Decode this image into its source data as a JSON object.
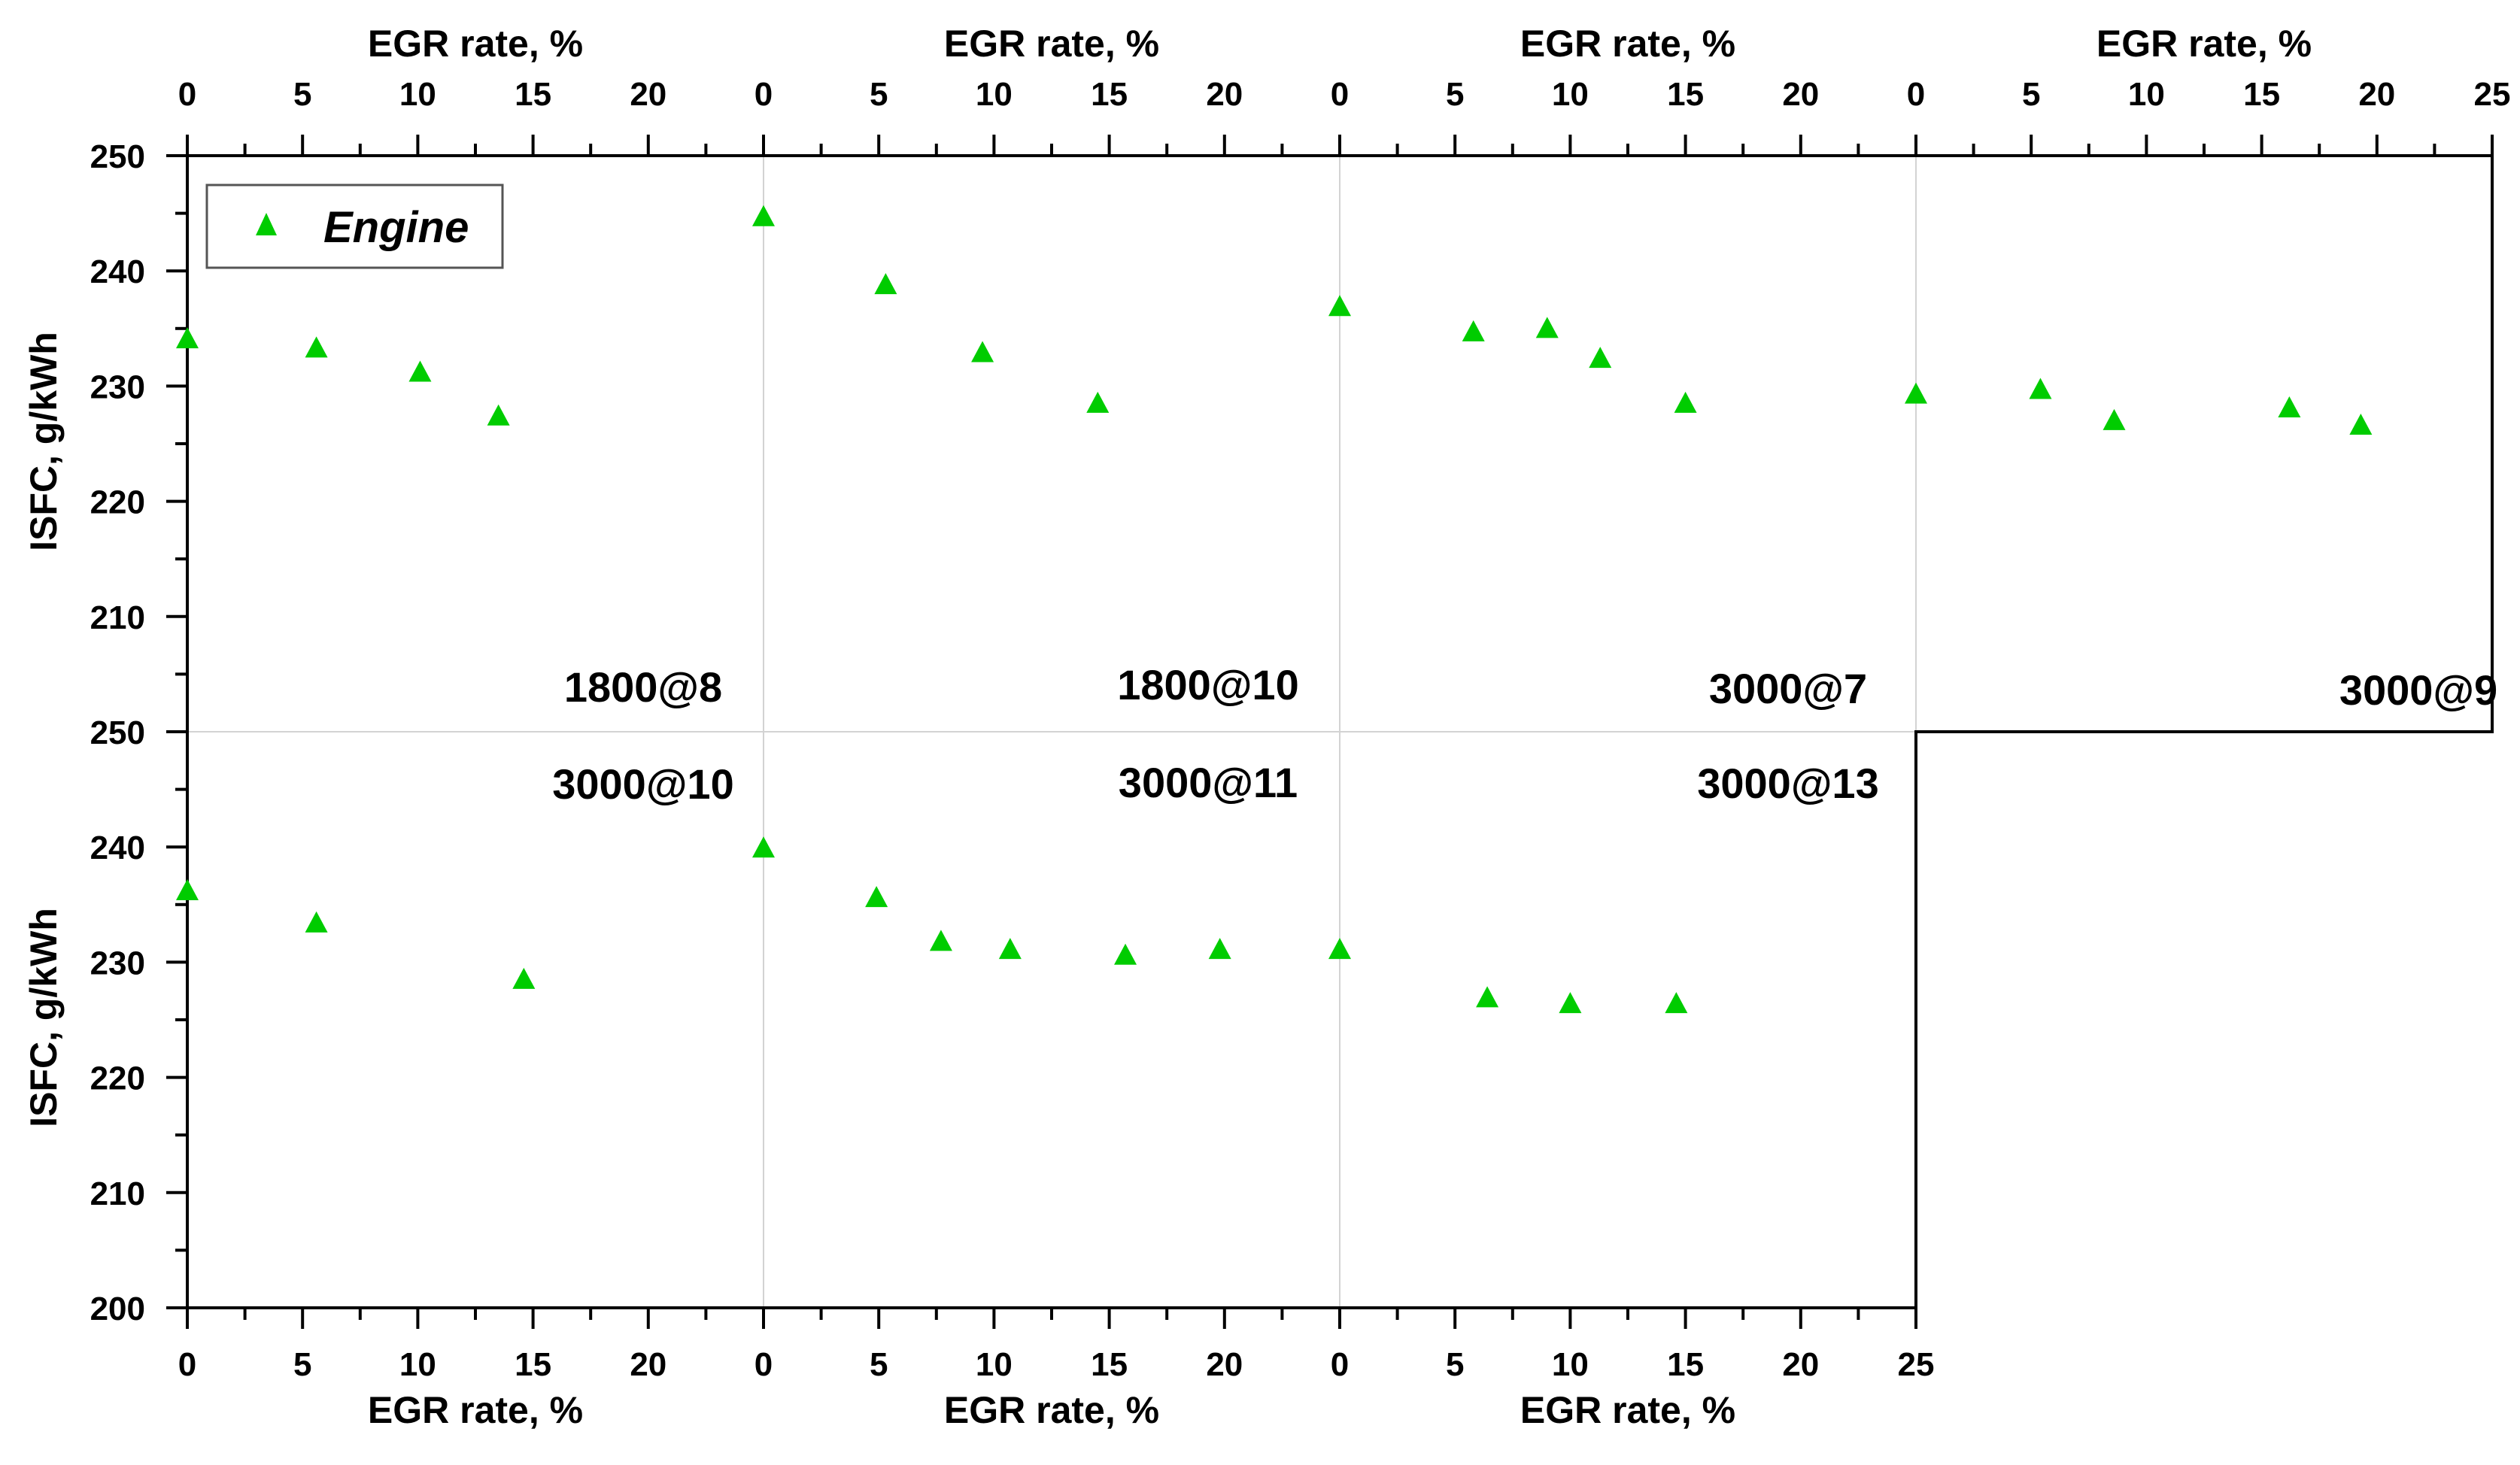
{
  "chart_data": {
    "type": "scatter",
    "marker_color": "#00cc00",
    "legend": {
      "label": "Engine",
      "placement": "top-left"
    },
    "x_axis": {
      "label": "EGR rate, %",
      "ticks": [
        "0",
        "5",
        "10",
        "15",
        "20",
        "25"
      ],
      "range": [
        0,
        25
      ]
    },
    "y_axis": {
      "label": "ISFC, g/kWh",
      "top_ticks": [
        "250",
        "240",
        "230",
        "220",
        "210"
      ],
      "bottom_ticks": [
        "250",
        "240",
        "230",
        "220",
        "210",
        "200"
      ],
      "range": [
        200,
        250
      ]
    },
    "panels": [
      {
        "label": "1800@8",
        "row": 0,
        "col": 0,
        "x": [
          0,
          5.6,
          10.1,
          13.5
        ],
        "y": [
          234.0,
          233.2,
          231.1,
          227.3
        ]
      },
      {
        "label": "1800@10",
        "row": 0,
        "col": 1,
        "x": [
          0,
          5.3,
          9.5,
          14.5
        ],
        "y": [
          244.6,
          238.7,
          232.8,
          228.4
        ]
      },
      {
        "label": "3000@7",
        "row": 0,
        "col": 2,
        "x": [
          0,
          5.8,
          9.0,
          11.3,
          15.0
        ],
        "y": [
          236.8,
          234.6,
          234.9,
          232.3,
          228.4
        ]
      },
      {
        "label": "3000@9",
        "row": 0,
        "col": 3,
        "x": [
          0,
          5.4,
          8.6,
          16.2,
          19.3
        ],
        "y": [
          229.2,
          229.6,
          226.9,
          228.0,
          226.5
        ]
      },
      {
        "label": "3000@10",
        "row": 1,
        "col": 0,
        "x": [
          0,
          5.6,
          14.6
        ],
        "y": [
          236.1,
          233.3,
          228.4
        ]
      },
      {
        "label": "3000@11",
        "row": 1,
        "col": 1,
        "x": [
          0,
          4.9,
          7.7,
          10.7,
          15.7,
          19.8
        ],
        "y": [
          239.8,
          235.5,
          231.7,
          231.0,
          230.5,
          231.0
        ]
      },
      {
        "label": "3000@13",
        "row": 1,
        "col": 2,
        "x": [
          0,
          6.4,
          10.0,
          14.6
        ],
        "y": [
          231.0,
          226.8,
          226.3,
          226.3
        ]
      }
    ]
  }
}
